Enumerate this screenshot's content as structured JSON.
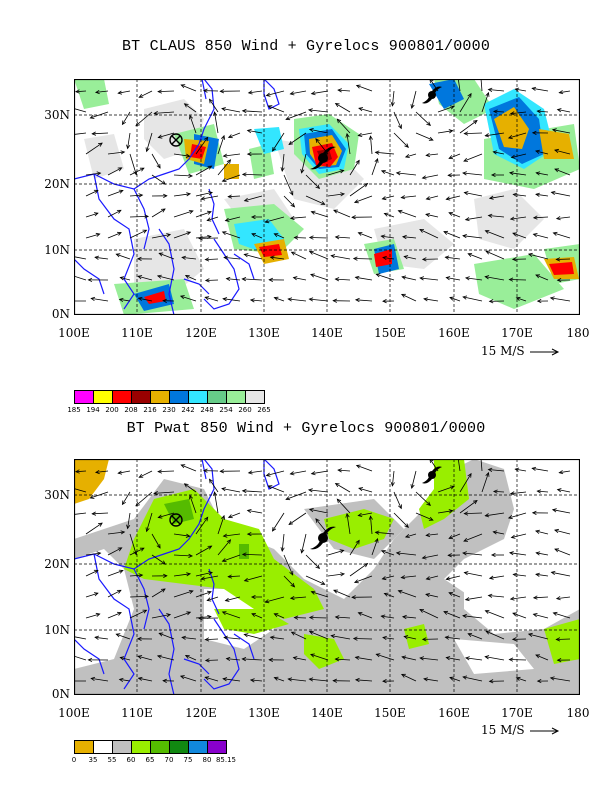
{
  "panels": [
    {
      "title": "BT CLAUS 850 Wind + Gyrelocs 900801/0000",
      "yticks": [
        "30N",
        "20N",
        "10N",
        "0N"
      ],
      "xticks": [
        "100E",
        "110E",
        "120E",
        "130E",
        "140E",
        "150E",
        "160E",
        "170E",
        "180"
      ],
      "ref_vector": "15 M/S",
      "colorbar": {
        "colors": [
          "#ff00ff",
          "#ffff00",
          "#ff0000",
          "#990000",
          "#e6b000",
          "#0077dd",
          "#33e6ff",
          "#66cc88",
          "#99ee99",
          "#e6e6e6"
        ],
        "labels": [
          "185",
          "194",
          "200",
          "208",
          "216",
          "230",
          "242",
          "248",
          "254",
          "260",
          "265"
        ]
      },
      "lon_range": [
        100,
        180
      ],
      "lat_range": [
        0,
        36
      ]
    },
    {
      "title": "BT Pwat 850 Wind + Gyrelocs 900801/0000",
      "yticks": [
        "30N",
        "20N",
        "10N",
        "0N"
      ],
      "xticks": [
        "100E",
        "110E",
        "120E",
        "130E",
        "140E",
        "150E",
        "160E",
        "170E",
        "180"
      ],
      "ref_vector": "15 M/S",
      "colorbar": {
        "colors": [
          "#e6b000",
          "#ffffff",
          "#c0c0c0",
          "#99ee00",
          "#55bb00",
          "#118811",
          "#1188dd",
          "#8800cc"
        ],
        "labels": [
          "0",
          "35",
          "55",
          "60",
          "65",
          "70",
          "75",
          "80",
          "85.15"
        ]
      },
      "lon_range": [
        100,
        180
      ],
      "lat_range": [
        0,
        36
      ]
    }
  ]
}
